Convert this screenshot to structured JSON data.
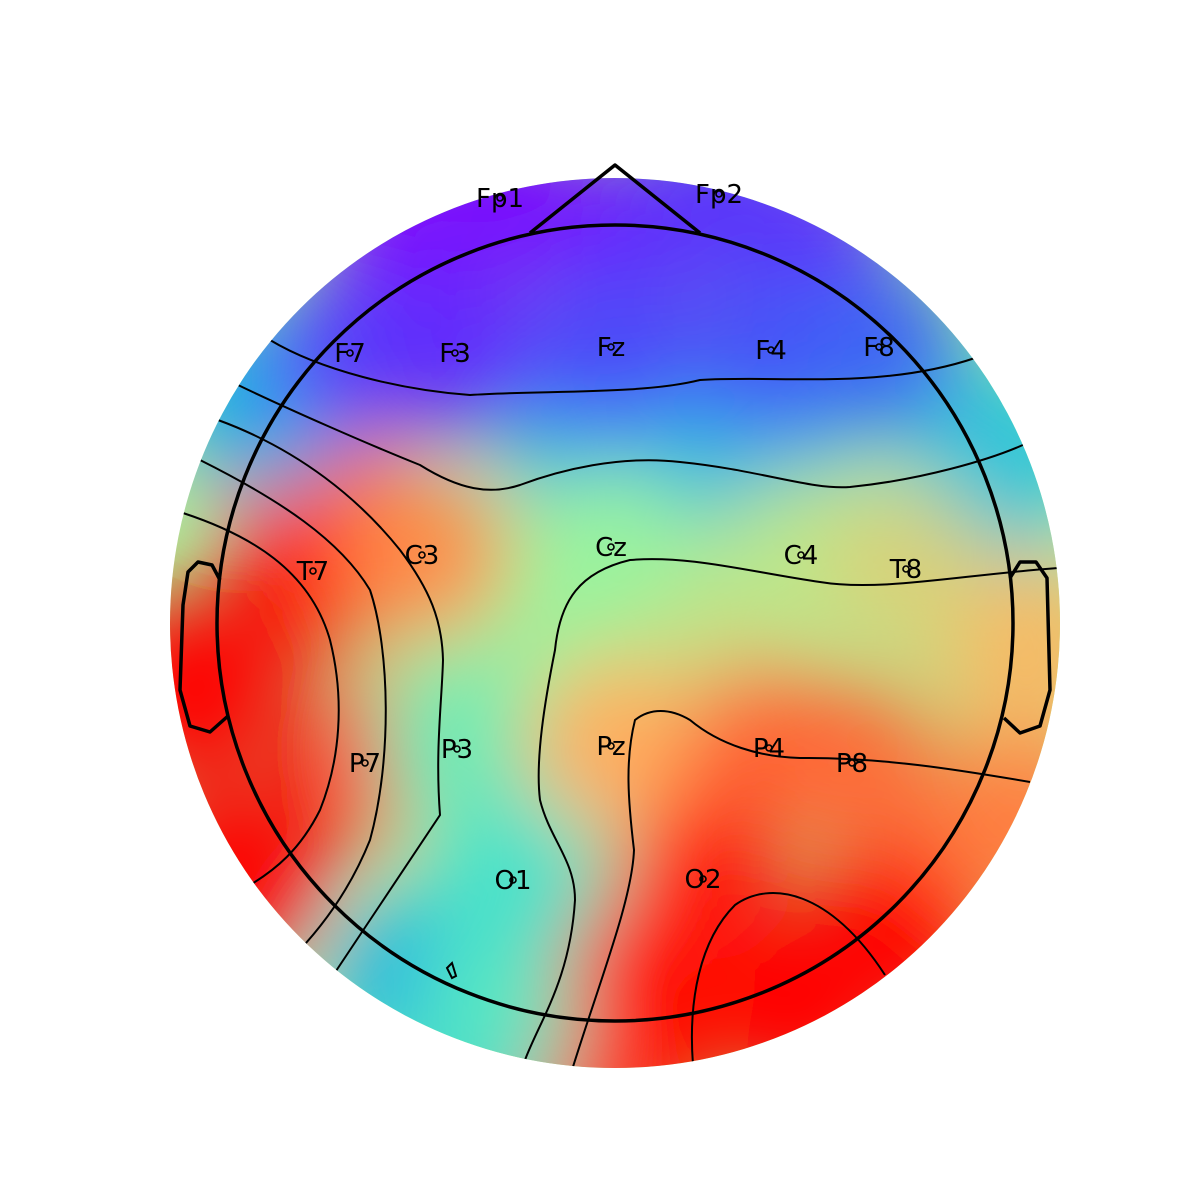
{
  "colormap": {
    "name": "rainbow",
    "stops": [
      "#7f00ff",
      "#4a4cf9",
      "#13a9e8",
      "#4ae6c8",
      "#a8f597",
      "#ffb360",
      "#ff5a2d",
      "#ff0000"
    ]
  },
  "electrodes": [
    {
      "name": "Fp1",
      "value": 0.02
    },
    {
      "name": "Fp2",
      "value": 0.1
    },
    {
      "name": "F7",
      "value": 0.12
    },
    {
      "name": "F3",
      "value": 0.08
    },
    {
      "name": "Fz",
      "value": 0.14
    },
    {
      "name": "F4",
      "value": 0.15
    },
    {
      "name": "F8",
      "value": 0.18
    },
    {
      "name": "T7",
      "value": 1.0
    },
    {
      "name": "C3",
      "value": 0.78
    },
    {
      "name": "Cz",
      "value": 0.55
    },
    {
      "name": "C4",
      "value": 0.6
    },
    {
      "name": "T8",
      "value": 0.65
    },
    {
      "name": "P7",
      "value": 1.0
    },
    {
      "name": "P3",
      "value": 0.48
    },
    {
      "name": "Pz",
      "value": 0.72
    },
    {
      "name": "P4",
      "value": 0.85
    },
    {
      "name": "P8",
      "value": 0.83
    },
    {
      "name": "O1",
      "value": 0.42
    },
    {
      "name": "O2",
      "value": 0.97
    }
  ]
}
